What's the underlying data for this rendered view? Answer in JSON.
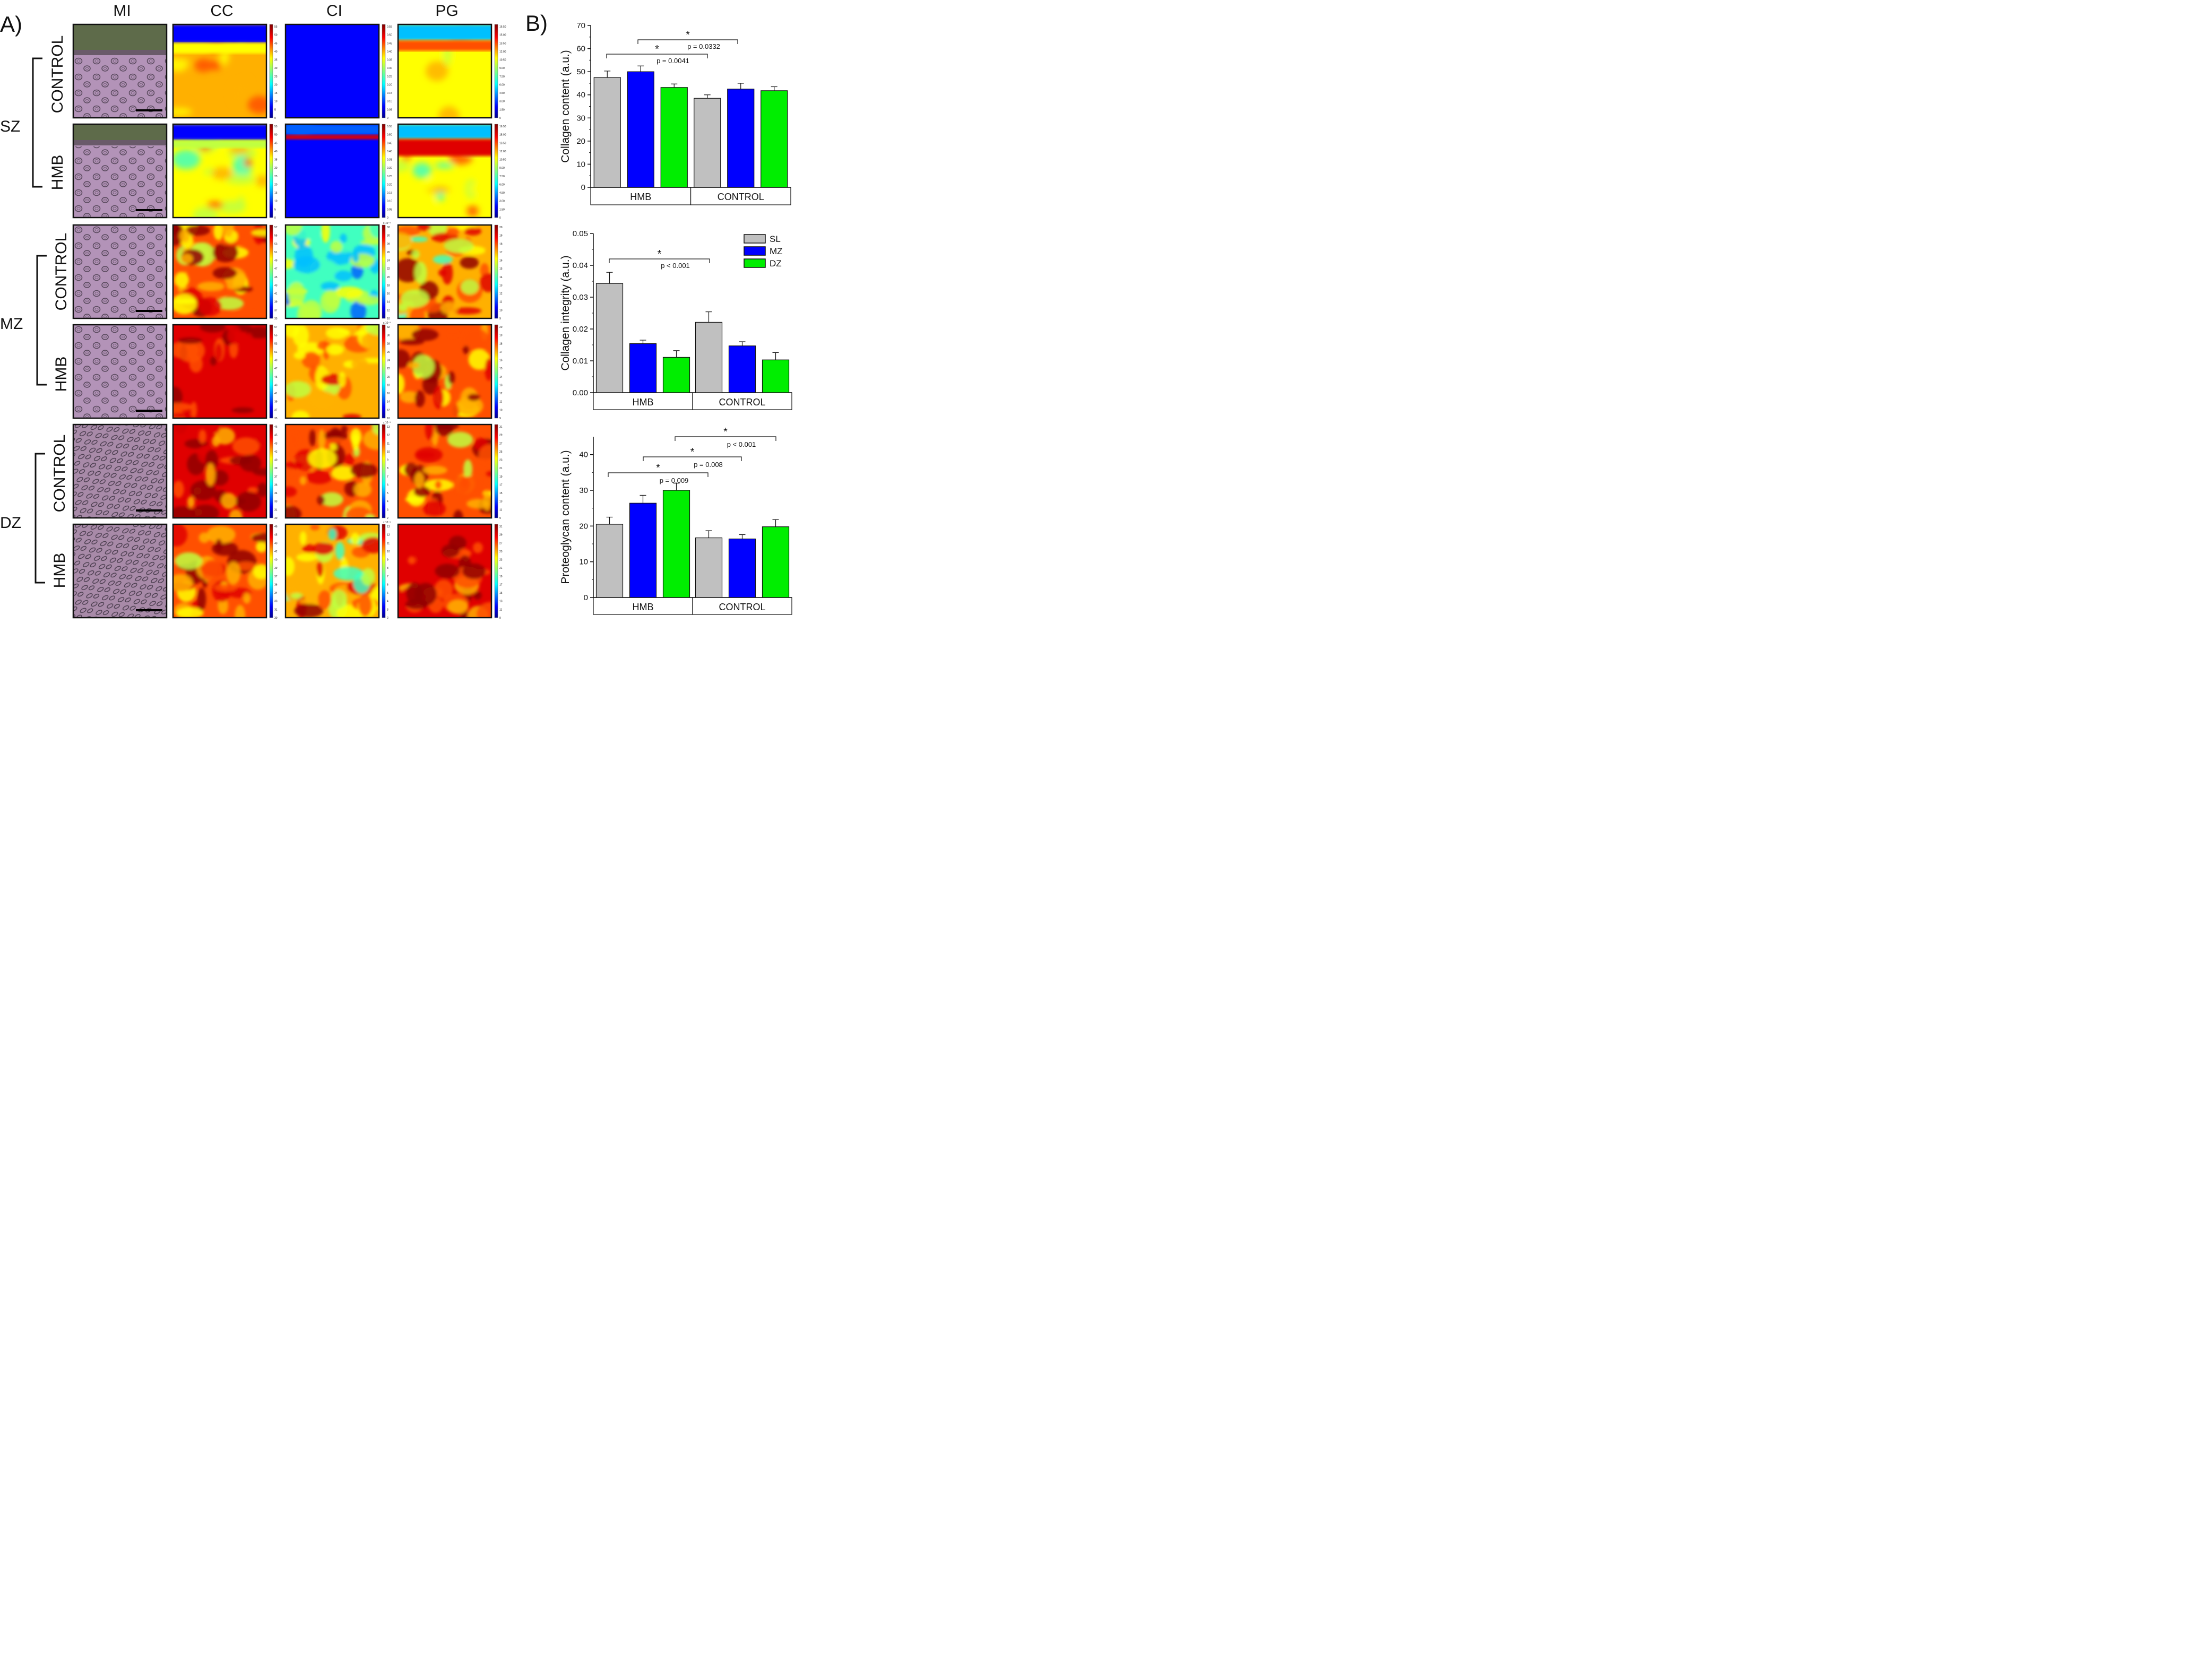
{
  "panel_a": {
    "label": "A)",
    "columns": [
      "MI",
      "CC",
      "CI",
      "PG"
    ],
    "zones": [
      {
        "label": "SZ",
        "rows": [
          "CONTROL",
          "HMB"
        ]
      },
      {
        "label": "MZ",
        "rows": [
          "CONTROL",
          "HMB"
        ]
      },
      {
        "label": "DZ",
        "rows": [
          "CONTROL",
          "HMB"
        ]
      }
    ],
    "colorbars": [
      [
        "55",
        "50",
        "45",
        "40",
        "35",
        "30",
        "25",
        "20",
        "15",
        "10",
        "5",
        "0"
      ],
      [
        "0.55",
        "0.50",
        "0.45",
        "0.40",
        "0.35",
        "0.30",
        "0.25",
        "0.20",
        "0.15",
        "0.10",
        "0.05",
        "0"
      ],
      [
        "16.50",
        "15.00",
        "13.50",
        "12.00",
        "10.50",
        "9.00",
        "7.50",
        "6.00",
        "4.50",
        "3.00",
        "1.50",
        "0"
      ],
      [
        "57",
        "55",
        "53",
        "51",
        "49",
        "47",
        "45",
        "43",
        "41",
        "39",
        "37",
        "35"
      ],
      [
        "32",
        "30",
        "28",
        "26",
        "24",
        "22",
        "20",
        "18",
        "16",
        "14",
        "12",
        "10"
      ],
      [
        "20",
        "19",
        "18",
        "17",
        "16",
        "15",
        "14",
        "13",
        "12",
        "11",
        "10",
        "9"
      ],
      [
        "46",
        "45",
        "43",
        "42",
        "40",
        "39",
        "37",
        "36",
        "34",
        "33",
        "31",
        "30"
      ],
      [
        "13",
        "12",
        "11",
        "10",
        "9",
        "8",
        "7",
        "6",
        "5",
        "4",
        "3",
        "2"
      ],
      [
        "31",
        "29",
        "27",
        "25",
        "23",
        "21",
        "19",
        "17",
        "15",
        "13",
        "11",
        "9"
      ]
    ],
    "exponent_label": "x 10⁻³"
  },
  "panel_b": {
    "label": "B)",
    "legend": [
      {
        "name": "SL",
        "color": "#c0c0c0"
      },
      {
        "name": "MZ",
        "color": "#0000ff"
      },
      {
        "name": "DZ",
        "color": "#00ee00"
      }
    ],
    "groups": [
      "HMB",
      "CONTROL"
    ]
  },
  "chart_data": [
    {
      "type": "bar",
      "ylabel": "Collagen content (a.u.)",
      "ylim": [
        0,
        70
      ],
      "yticks": [
        "0",
        "10",
        "20",
        "30",
        "40",
        "50",
        "60",
        "70"
      ],
      "groups": [
        "HMB",
        "CONTROL"
      ],
      "series": [
        {
          "name": "SL",
          "color": "#c0c0c0",
          "values": [
            47.5,
            38.5
          ],
          "errors": [
            2.8,
            1.5
          ]
        },
        {
          "name": "MZ",
          "color": "#0000ff",
          "values": [
            50.0,
            42.5
          ],
          "errors": [
            2.5,
            2.5
          ]
        },
        {
          "name": "DZ",
          "color": "#00ee00",
          "values": [
            43.2,
            41.8
          ],
          "errors": [
            1.5,
            1.7
          ]
        }
      ],
      "annotations": [
        {
          "star": "*",
          "p": "p = 0.0332"
        },
        {
          "star": "*",
          "p": "p = 0.0041"
        }
      ]
    },
    {
      "type": "bar",
      "ylabel": "Collagen integrity (a.u.)",
      "ylim": [
        0,
        0.05
      ],
      "yticks": [
        "0.00",
        "0.01",
        "0.02",
        "0.03",
        "0.04",
        "0.05"
      ],
      "groups": [
        "HMB",
        "CONTROL"
      ],
      "series": [
        {
          "name": "SL",
          "color": "#c0c0c0",
          "values": [
            0.0343,
            0.0221
          ],
          "errors": [
            0.0035,
            0.0033
          ]
        },
        {
          "name": "MZ",
          "color": "#0000ff",
          "values": [
            0.0154,
            0.0147
          ],
          "errors": [
            0.0011,
            0.0013
          ]
        },
        {
          "name": "DZ",
          "color": "#00ee00",
          "values": [
            0.0111,
            0.0103
          ],
          "errors": [
            0.0021,
            0.0023
          ]
        }
      ],
      "annotations": [
        {
          "star": "*",
          "p": "p < 0.001"
        }
      ]
    },
    {
      "type": "bar",
      "ylabel": "Proteoglycan content (a.u.)",
      "ylim": [
        0,
        45
      ],
      "yticks": [
        "0",
        "10",
        "20",
        "30",
        "40"
      ],
      "groups": [
        "HMB",
        "CONTROL"
      ],
      "series": [
        {
          "name": "SL",
          "color": "#c0c0c0",
          "values": [
            20.5,
            16.7
          ],
          "errors": [
            2.0,
            2.0
          ]
        },
        {
          "name": "MZ",
          "color": "#0000ff",
          "values": [
            26.4,
            16.4
          ],
          "errors": [
            2.2,
            1.2
          ]
        },
        {
          "name": "DZ",
          "color": "#00ee00",
          "values": [
            30.0,
            19.8
          ],
          "errors": [
            2.0,
            2.0
          ]
        }
      ],
      "annotations": [
        {
          "star": "*",
          "p": "p < 0.001"
        },
        {
          "star": "*",
          "p": "p = 0.008"
        },
        {
          "star": "*",
          "p": "p = 0.009"
        }
      ]
    }
  ]
}
